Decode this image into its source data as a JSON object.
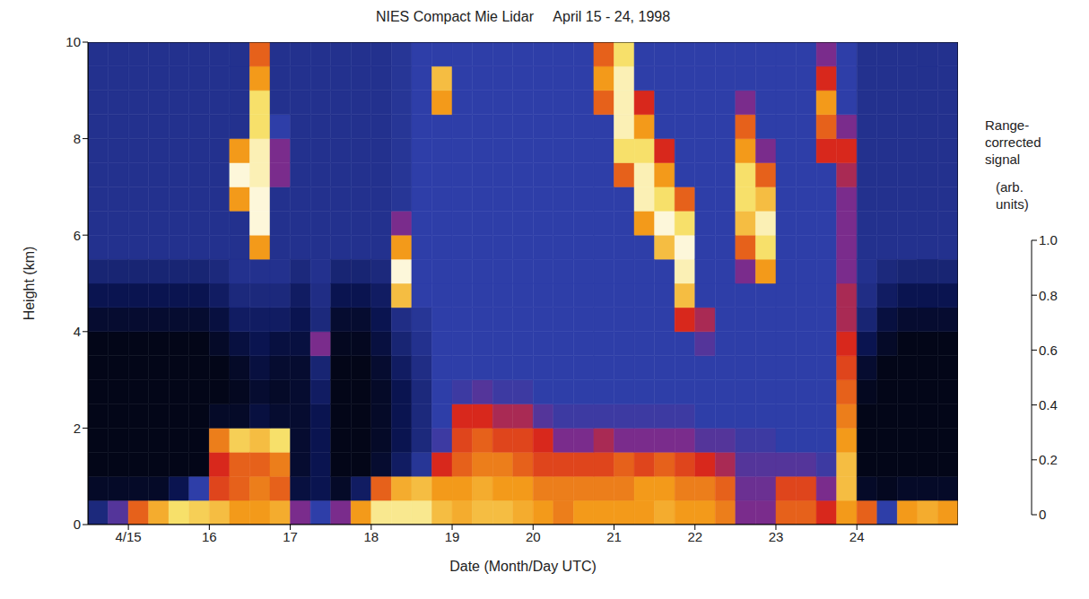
{
  "chart_data": {
    "type": "heatmap",
    "title": "NIES Compact Mie Lidar     April 15 - 24, 1998",
    "x_label": "Date (Month/Day UTC)",
    "y_label": "Height (km)",
    "xlim": [
      14.5,
      25.25
    ],
    "xticks": [
      {
        "value": 15,
        "label": "4/15"
      },
      16,
      17,
      18,
      19,
      20,
      21,
      22,
      23,
      24
    ],
    "ylim": [
      0,
      10
    ],
    "yticks": [
      0,
      2,
      4,
      6,
      8,
      10
    ],
    "heatmap": {
      "x_bins": [
        14.5,
        14.75,
        15,
        15.25,
        15.5,
        15.75,
        16,
        16.25,
        16.5,
        16.75,
        17,
        17.25,
        17.5,
        17.75,
        18,
        18.25,
        18.5,
        18.75,
        19,
        19.25,
        19.5,
        19.75,
        20,
        20.25,
        20.5,
        20.75,
        21,
        21.25,
        21.5,
        21.75,
        22,
        22.25,
        22.5,
        22.75,
        23,
        23.25,
        23.5,
        23.75,
        24,
        24.25,
        24.5,
        24.75,
        25,
        25.25
      ],
      "y_bins": [
        0,
        0.5,
        1,
        1.5,
        2,
        2.5,
        3,
        3.5,
        4,
        4.5,
        5,
        5.5,
        6,
        6.5,
        7,
        7.5,
        8,
        8.5,
        9,
        9.5,
        10
      ],
      "cells": [
        [
          0.15,
          0.05,
          0.03,
          0.03,
          0.03,
          0.03,
          0.03,
          0.03,
          0.06,
          0.1,
          0.14,
          0.17,
          0.17,
          0.17,
          0.17,
          0.17,
          0.17,
          0.17,
          0.17,
          0.17
        ],
        [
          0.25,
          0.05,
          0.03,
          0.03,
          0.03,
          0.03,
          0.03,
          0.03,
          0.06,
          0.1,
          0.14,
          0.17,
          0.17,
          0.17,
          0.17,
          0.17,
          0.17,
          0.17,
          0.17,
          0.17
        ],
        [
          0.5,
          0.05,
          0.03,
          0.03,
          0.03,
          0.03,
          0.03,
          0.03,
          0.06,
          0.1,
          0.14,
          0.17,
          0.17,
          0.17,
          0.17,
          0.17,
          0.17,
          0.17,
          0.17,
          0.17
        ],
        [
          0.65,
          0.05,
          0.03,
          0.03,
          0.03,
          0.03,
          0.03,
          0.03,
          0.06,
          0.1,
          0.14,
          0.17,
          0.17,
          0.17,
          0.17,
          0.17,
          0.17,
          0.17,
          0.17,
          0.17
        ],
        [
          0.8,
          0.1,
          0.03,
          0.03,
          0.03,
          0.03,
          0.03,
          0.03,
          0.06,
          0.1,
          0.14,
          0.17,
          0.17,
          0.17,
          0.17,
          0.17,
          0.17,
          0.17,
          0.17,
          0.17
        ],
        [
          0.75,
          0.2,
          0.03,
          0.03,
          0.03,
          0.03,
          0.03,
          0.03,
          0.06,
          0.1,
          0.14,
          0.17,
          0.17,
          0.17,
          0.17,
          0.17,
          0.17,
          0.17,
          0.17,
          0.17
        ],
        [
          0.7,
          0.45,
          0.4,
          0.55,
          0.05,
          0.03,
          0.03,
          0.05,
          0.08,
          0.12,
          0.15,
          0.17,
          0.17,
          0.17,
          0.17,
          0.17,
          0.17,
          0.17,
          0.17,
          0.17
        ],
        [
          0.6,
          0.5,
          0.5,
          0.75,
          0.05,
          0.04,
          0.05,
          0.08,
          0.12,
          0.15,
          0.17,
          0.17,
          0.17,
          0.6,
          0.95,
          0.6,
          0.17,
          0.17,
          0.17,
          0.17
        ],
        [
          0.6,
          0.55,
          0.5,
          0.7,
          0.08,
          0.06,
          0.08,
          0.1,
          0.12,
          0.15,
          0.17,
          0.6,
          0.95,
          0.95,
          0.9,
          0.9,
          0.8,
          0.8,
          0.6,
          0.5
        ],
        [
          0.65,
          0.5,
          0.55,
          0.8,
          0.06,
          0.05,
          0.06,
          0.08,
          0.12,
          0.15,
          0.17,
          0.17,
          0.17,
          0.17,
          0.3,
          0.3,
          0.2,
          0.17,
          0.17,
          0.17
        ],
        [
          0.3,
          0.08,
          0.06,
          0.06,
          0.06,
          0.06,
          0.06,
          0.08,
          0.1,
          0.12,
          0.15,
          0.17,
          0.17,
          0.17,
          0.17,
          0.17,
          0.17,
          0.17,
          0.17,
          0.17
        ],
        [
          0.2,
          0.1,
          0.1,
          0.1,
          0.1,
          0.12,
          0.14,
          0.3,
          0.15,
          0.16,
          0.17,
          0.17,
          0.17,
          0.17,
          0.17,
          0.17,
          0.17,
          0.17,
          0.17,
          0.17
        ],
        [
          0.3,
          0.05,
          0.03,
          0.03,
          0.03,
          0.03,
          0.03,
          0.04,
          0.06,
          0.1,
          0.14,
          0.17,
          0.17,
          0.17,
          0.17,
          0.17,
          0.17,
          0.17,
          0.17,
          0.17
        ],
        [
          0.6,
          0.12,
          0.03,
          0.03,
          0.03,
          0.03,
          0.03,
          0.04,
          0.06,
          0.1,
          0.14,
          0.17,
          0.17,
          0.17,
          0.17,
          0.17,
          0.17,
          0.17,
          0.17,
          0.17
        ],
        [
          0.85,
          0.5,
          0.06,
          0.05,
          0.05,
          0.05,
          0.06,
          0.08,
          0.1,
          0.12,
          0.15,
          0.17,
          0.17,
          0.17,
          0.17,
          0.17,
          0.17,
          0.17,
          0.17,
          0.17
        ],
        [
          0.85,
          0.65,
          0.12,
          0.1,
          0.1,
          0.1,
          0.12,
          0.14,
          0.16,
          0.7,
          0.95,
          0.6,
          0.3,
          0.18,
          0.18,
          0.18,
          0.18,
          0.18,
          0.18,
          0.18
        ],
        [
          0.85,
          0.7,
          0.18,
          0.15,
          0.15,
          0.15,
          0.16,
          0.17,
          0.18,
          0.2,
          0.2,
          0.2,
          0.2,
          0.2,
          0.2,
          0.2,
          0.2,
          0.2,
          0.2,
          0.2
        ],
        [
          0.7,
          0.6,
          0.4,
          0.22,
          0.2,
          0.2,
          0.2,
          0.2,
          0.2,
          0.2,
          0.2,
          0.2,
          0.2,
          0.2,
          0.2,
          0.2,
          0.2,
          0.6,
          0.7,
          0.2
        ],
        [
          0.65,
          0.6,
          0.5,
          0.45,
          0.4,
          0.22,
          0.2,
          0.2,
          0.2,
          0.2,
          0.2,
          0.2,
          0.2,
          0.2,
          0.2,
          0.2,
          0.2,
          0.2,
          0.2,
          0.2
        ],
        [
          0.7,
          0.65,
          0.55,
          0.5,
          0.4,
          0.25,
          0.2,
          0.2,
          0.2,
          0.2,
          0.2,
          0.2,
          0.2,
          0.2,
          0.2,
          0.2,
          0.2,
          0.2,
          0.2,
          0.2
        ],
        [
          0.7,
          0.6,
          0.55,
          0.45,
          0.35,
          0.22,
          0.2,
          0.2,
          0.2,
          0.2,
          0.2,
          0.2,
          0.2,
          0.2,
          0.2,
          0.2,
          0.2,
          0.2,
          0.2,
          0.2
        ],
        [
          0.65,
          0.6,
          0.5,
          0.45,
          0.35,
          0.22,
          0.2,
          0.2,
          0.2,
          0.2,
          0.2,
          0.2,
          0.2,
          0.2,
          0.2,
          0.2,
          0.2,
          0.2,
          0.2,
          0.2
        ],
        [
          0.6,
          0.55,
          0.45,
          0.4,
          0.25,
          0.2,
          0.2,
          0.2,
          0.2,
          0.2,
          0.2,
          0.2,
          0.2,
          0.2,
          0.2,
          0.2,
          0.2,
          0.2,
          0.2,
          0.2
        ],
        [
          0.55,
          0.55,
          0.45,
          0.3,
          0.22,
          0.2,
          0.2,
          0.2,
          0.2,
          0.2,
          0.2,
          0.2,
          0.2,
          0.2,
          0.2,
          0.2,
          0.2,
          0.2,
          0.2,
          0.2
        ],
        [
          0.6,
          0.55,
          0.45,
          0.3,
          0.22,
          0.2,
          0.2,
          0.2,
          0.2,
          0.2,
          0.2,
          0.2,
          0.2,
          0.2,
          0.2,
          0.2,
          0.2,
          0.2,
          0.2,
          0.2
        ],
        [
          0.6,
          0.55,
          0.45,
          0.35,
          0.22,
          0.2,
          0.2,
          0.2,
          0.2,
          0.2,
          0.2,
          0.2,
          0.2,
          0.2,
          0.2,
          0.2,
          0.2,
          0.5,
          0.6,
          0.5
        ],
        [
          0.6,
          0.55,
          0.5,
          0.3,
          0.22,
          0.2,
          0.2,
          0.2,
          0.2,
          0.2,
          0.2,
          0.2,
          0.2,
          0.2,
          0.5,
          0.8,
          0.9,
          0.9,
          0.9,
          0.8
        ],
        [
          0.6,
          0.6,
          0.45,
          0.3,
          0.22,
          0.2,
          0.2,
          0.2,
          0.2,
          0.2,
          0.2,
          0.2,
          0.6,
          0.9,
          0.9,
          0.8,
          0.6,
          0.4,
          0.2,
          0.2
        ],
        [
          0.65,
          0.6,
          0.5,
          0.3,
          0.22,
          0.2,
          0.2,
          0.2,
          0.2,
          0.2,
          0.2,
          0.7,
          0.95,
          0.8,
          0.6,
          0.4,
          0.2,
          0.2,
          0.2,
          0.2
        ],
        [
          0.6,
          0.55,
          0.45,
          0.3,
          0.22,
          0.2,
          0.2,
          0.2,
          0.4,
          0.7,
          0.9,
          0.95,
          0.8,
          0.5,
          0.2,
          0.2,
          0.2,
          0.2,
          0.2,
          0.2
        ],
        [
          0.6,
          0.55,
          0.4,
          0.25,
          0.2,
          0.2,
          0.2,
          0.25,
          0.35,
          0.2,
          0.2,
          0.2,
          0.2,
          0.2,
          0.2,
          0.2,
          0.2,
          0.2,
          0.2,
          0.2
        ],
        [
          0.55,
          0.5,
          0.35,
          0.25,
          0.2,
          0.2,
          0.2,
          0.2,
          0.2,
          0.2,
          0.2,
          0.2,
          0.2,
          0.2,
          0.2,
          0.2,
          0.2,
          0.2,
          0.2,
          0.2
        ],
        [
          0.3,
          0.28,
          0.25,
          0.22,
          0.2,
          0.2,
          0.2,
          0.2,
          0.2,
          0.2,
          0.3,
          0.5,
          0.7,
          0.8,
          0.8,
          0.6,
          0.5,
          0.3,
          0.2,
          0.2
        ],
        [
          0.3,
          0.28,
          0.25,
          0.22,
          0.2,
          0.2,
          0.2,
          0.2,
          0.2,
          0.2,
          0.6,
          0.8,
          0.9,
          0.7,
          0.5,
          0.3,
          0.2,
          0.2,
          0.2,
          0.2
        ],
        [
          0.5,
          0.45,
          0.25,
          0.2,
          0.2,
          0.2,
          0.2,
          0.2,
          0.2,
          0.2,
          0.2,
          0.2,
          0.2,
          0.2,
          0.2,
          0.2,
          0.2,
          0.2,
          0.2,
          0.2
        ],
        [
          0.5,
          0.45,
          0.25,
          0.2,
          0.2,
          0.2,
          0.2,
          0.2,
          0.2,
          0.2,
          0.2,
          0.2,
          0.2,
          0.2,
          0.2,
          0.2,
          0.2,
          0.2,
          0.2,
          0.2
        ],
        [
          0.4,
          0.3,
          0.22,
          0.2,
          0.2,
          0.2,
          0.2,
          0.2,
          0.2,
          0.2,
          0.2,
          0.2,
          0.2,
          0.2,
          0.2,
          0.4,
          0.5,
          0.6,
          0.4,
          0.3
        ],
        [
          0.6,
          0.7,
          0.7,
          0.6,
          0.55,
          0.5,
          0.45,
          0.4,
          0.35,
          0.35,
          0.3,
          0.3,
          0.3,
          0.3,
          0.35,
          0.4,
          0.3,
          0.2,
          0.2,
          0.2
        ],
        [
          0.5,
          0.05,
          0.03,
          0.03,
          0.03,
          0.04,
          0.06,
          0.1,
          0.14,
          0.16,
          0.17,
          0.17,
          0.17,
          0.17,
          0.17,
          0.17,
          0.17,
          0.17,
          0.17,
          0.17
        ],
        [
          0.2,
          0.04,
          0.03,
          0.03,
          0.03,
          0.03,
          0.03,
          0.05,
          0.08,
          0.12,
          0.15,
          0.17,
          0.17,
          0.17,
          0.17,
          0.17,
          0.17,
          0.17,
          0.17,
          0.17
        ],
        [
          0.6,
          0.05,
          0.03,
          0.03,
          0.03,
          0.03,
          0.03,
          0.03,
          0.06,
          0.1,
          0.14,
          0.17,
          0.17,
          0.17,
          0.17,
          0.17,
          0.17,
          0.17,
          0.17,
          0.17
        ],
        [
          0.65,
          0.05,
          0.03,
          0.03,
          0.03,
          0.03,
          0.03,
          0.03,
          0.06,
          0.1,
          0.14,
          0.17,
          0.17,
          0.17,
          0.17,
          0.17,
          0.17,
          0.17,
          0.17,
          0.17
        ],
        [
          0.6,
          0.05,
          0.03,
          0.03,
          0.03,
          0.03,
          0.03,
          0.03,
          0.06,
          0.1,
          0.14,
          0.17,
          0.17,
          0.17,
          0.17,
          0.17,
          0.17,
          0.17,
          0.17,
          0.17
        ]
      ]
    },
    "colorbar": {
      "label": "Range-corrected signal",
      "units": "(arb. units)",
      "range": [
        0,
        1
      ],
      "ticks": [
        0,
        0.2,
        0.4,
        0.6,
        0.8,
        {
          "value": 1,
          "label": "1.0"
        }
      ]
    }
  }
}
